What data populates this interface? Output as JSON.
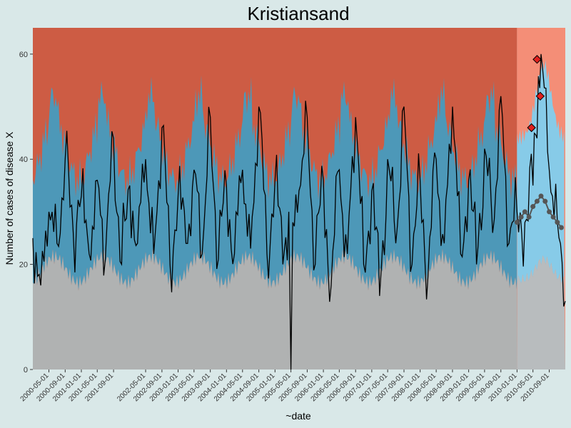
{
  "chart_data": {
    "type": "line",
    "title": "Kristiansand",
    "xlabel": "~date",
    "ylabel": "Number of cases of disease X",
    "ylim": [
      0,
      65
    ],
    "y_ticks": [
      0,
      20,
      40,
      60
    ],
    "x_range": [
      "2000-01-01",
      "2010-12-31"
    ],
    "x_ticks": [
      "2000-05-01",
      "2000-09-01",
      "2001-01-01",
      "2001-05-01",
      "2001-09-01",
      "2002-05-01",
      "2002-09-01",
      "2003-01-01",
      "2003-05-01",
      "2003-09-01",
      "2004-01-01",
      "2004-05-01",
      "2004-09-01",
      "2005-01-01",
      "2005-05-01",
      "2005-09-01",
      "2006-01-01",
      "2006-05-01",
      "2006-09-01",
      "2007-01-01",
      "2007-05-01",
      "2007-09-01",
      "2008-01-01",
      "2008-05-01",
      "2008-09-01",
      "2009-01-01",
      "2009-05-01",
      "2009-09-01",
      "2010-01-01",
      "2010-05-01",
      "2010-09-01"
    ],
    "forecast_start": "2010-01-01",
    "colors": {
      "background": "#d9e8e8",
      "baseline_upper": "#cd5c44",
      "baseline_band": "#4d98b8",
      "baseline_lower": "#b0b2b2",
      "forecast_upper": "#f48e77",
      "forecast_band": "#87cbe8",
      "forecast_lower": "#b8bcbe",
      "line": "#000000",
      "forecast_points": "#555555",
      "alert_points": "#e0201e"
    },
    "series": [
      {
        "x": [
          "2000-01-01",
          "2000-03-01",
          "2000-05-01",
          "2000-07-01",
          "2000-09-01",
          "2000-11-01",
          "2001-01-01",
          "2001-03-01",
          "2001-05-01",
          "2001-07-01",
          "2001-09-01",
          "2001-11-01",
          "2002-01-01",
          "2002-03-01",
          "2002-05-01",
          "2002-07-01",
          "2002-09-01",
          "2002-11-01",
          "2003-01-01",
          "2003-03-01",
          "2003-05-01",
          "2003-07-01",
          "2003-09-01",
          "2003-11-01",
          "2004-01-01",
          "2004-03-01",
          "2004-05-01",
          "2004-07-01",
          "2004-09-01",
          "2004-11-01",
          "2005-01-01",
          "2005-03-01",
          "2005-04-15",
          "2005-05-01",
          "2005-05-15",
          "2005-07-01",
          "2005-09-01",
          "2005-11-01",
          "2006-01-01",
          "2006-03-01",
          "2006-05-01",
          "2006-07-01",
          "2006-09-01",
          "2006-11-01",
          "2007-01-01",
          "2007-03-01",
          "2007-05-01",
          "2007-07-01",
          "2007-09-01",
          "2007-11-01",
          "2008-01-01",
          "2008-03-01",
          "2008-05-01",
          "2008-07-01",
          "2008-09-01",
          "2008-11-01",
          "2009-01-01",
          "2009-03-01",
          "2009-05-01",
          "2009-07-01",
          "2009-09-01",
          "2009-11-01",
          "2010-01-01",
          "2010-03-01",
          "2010-05-01",
          "2010-06-01",
          "2010-07-01",
          "2010-09-01",
          "2010-11-01",
          "2010-12-31"
        ],
        "values": [
          25,
          16,
          30,
          24,
          40,
          26,
          33,
          22,
          36,
          21,
          44,
          20,
          35,
          24,
          40,
          22,
          46,
          20,
          33,
          24,
          38,
          22,
          48,
          21,
          35,
          22,
          38,
          23,
          50,
          22,
          36,
          20,
          30,
          0,
          28,
          34,
          48,
          20,
          36,
          16,
          38,
          22,
          48,
          20,
          34,
          14,
          40,
          24,
          50,
          20,
          36,
          18,
          40,
          24,
          50,
          22,
          36,
          20,
          42,
          26,
          52,
          24,
          30,
          28,
          35,
          44,
          60,
          38,
          28,
          13
        ]
      },
      {
        "name": "",
        "x": [
          "2010-01-01",
          "2010-02-01",
          "2010-03-01",
          "2010-04-01",
          "2010-05-01",
          "2010-06-01",
          "2010-07-01",
          "2010-08-01",
          "2010-09-01",
          "2010-10-01",
          "2010-11-01",
          "2010-12-01"
        ],
        "values": [
          28,
          29,
          30,
          29,
          31,
          32,
          33,
          32,
          30,
          29,
          28,
          27
        ]
      },
      {
        "name": "",
        "x": [
          "2010-04-20",
          "2010-06-01",
          "2010-06-25"
        ],
        "values": [
          46,
          59,
          52
        ]
      }
    ],
    "grid": false,
    "legend": "none"
  }
}
